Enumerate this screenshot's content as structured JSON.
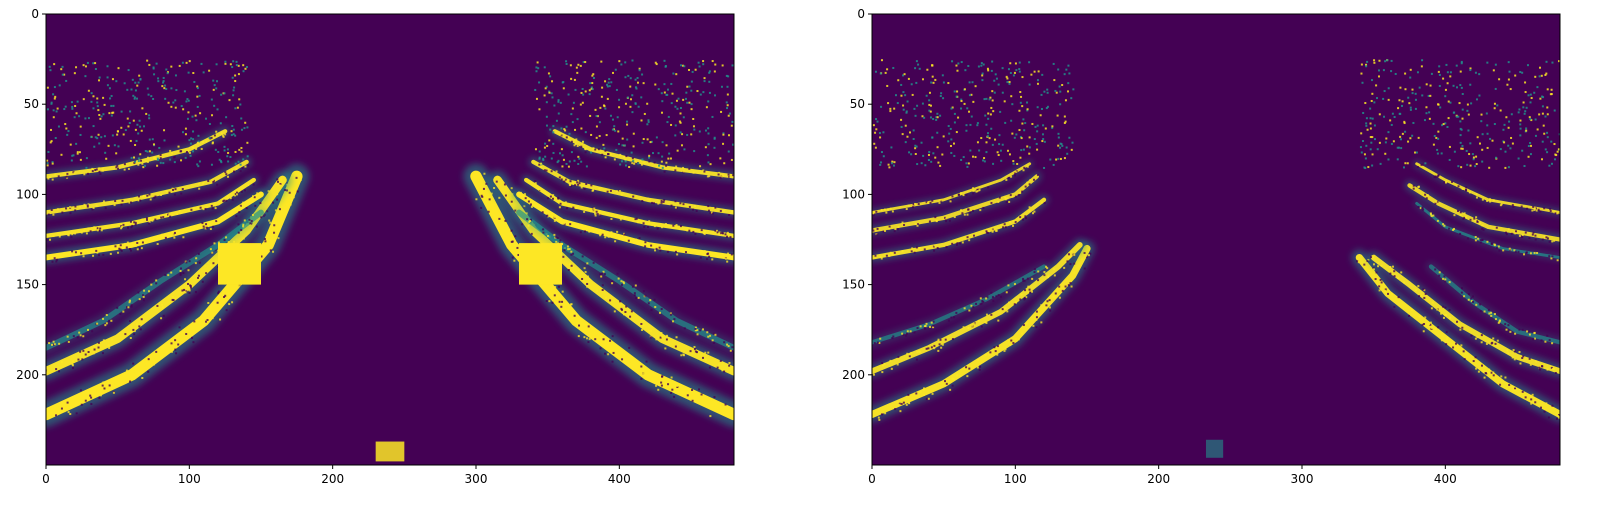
{
  "chart_data": [
    {
      "type": "heatmap",
      "title": "",
      "xlabel": "",
      "ylabel": "",
      "colormap": "viridis",
      "background_color": "#440154",
      "highlight_color": "#fde725",
      "mid_color": "#21918c",
      "xlim": [
        0,
        480
      ],
      "ylim": [
        250,
        0
      ],
      "x_ticks": [
        "0",
        "100",
        "200",
        "300",
        "400"
      ],
      "y_ticks": [
        "0",
        "50",
        "100",
        "150",
        "200"
      ],
      "features": [
        {
          "kind": "stripe",
          "x": [
            0,
            60,
            110,
            155,
            175
          ],
          "y": [
            222,
            200,
            170,
            128,
            90
          ],
          "intensity": 1.0,
          "width": 8
        },
        {
          "kind": "stripe",
          "x": [
            0,
            50,
            100,
            140,
            165
          ],
          "y": [
            198,
            180,
            150,
            120,
            92
          ],
          "intensity": 0.95,
          "width": 6
        },
        {
          "kind": "stripe",
          "x": [
            0,
            40,
            80,
            120,
            150
          ],
          "y": [
            185,
            170,
            148,
            128,
            110
          ],
          "intensity": 0.5,
          "width": 4
        },
        {
          "kind": "stripe",
          "x": [
            480,
            420,
            370,
            325,
            300
          ],
          "y": [
            222,
            200,
            170,
            128,
            90
          ],
          "intensity": 1.0,
          "width": 8
        },
        {
          "kind": "stripe",
          "x": [
            480,
            430,
            380,
            340,
            315
          ],
          "y": [
            198,
            180,
            150,
            120,
            92
          ],
          "intensity": 0.95,
          "width": 6
        },
        {
          "kind": "stripe",
          "x": [
            480,
            440,
            400,
            360,
            330
          ],
          "y": [
            185,
            170,
            148,
            128,
            110
          ],
          "intensity": 0.5,
          "width": 4
        },
        {
          "kind": "stripe",
          "x": [
            0,
            60,
            120,
            150
          ],
          "y": [
            135,
            128,
            115,
            100
          ],
          "intensity": 1.0,
          "width": 4
        },
        {
          "kind": "stripe",
          "x": [
            0,
            60,
            120,
            145
          ],
          "y": [
            123,
            116,
            105,
            92
          ],
          "intensity": 0.95,
          "width": 3
        },
        {
          "kind": "stripe",
          "x": [
            0,
            60,
            115,
            140
          ],
          "y": [
            110,
            103,
            93,
            82
          ],
          "intensity": 0.9,
          "width": 3
        },
        {
          "kind": "stripe",
          "x": [
            0,
            50,
            100,
            125
          ],
          "y": [
            90,
            85,
            75,
            65
          ],
          "intensity": 0.9,
          "width": 3
        },
        {
          "kind": "stripe",
          "x": [
            480,
            420,
            360,
            330
          ],
          "y": [
            135,
            128,
            115,
            100
          ],
          "intensity": 1.0,
          "width": 4
        },
        {
          "kind": "stripe",
          "x": [
            480,
            420,
            360,
            335
          ],
          "y": [
            123,
            116,
            105,
            92
          ],
          "intensity": 0.95,
          "width": 3
        },
        {
          "kind": "stripe",
          "x": [
            480,
            420,
            365,
            340
          ],
          "y": [
            110,
            103,
            93,
            82
          ],
          "intensity": 0.9,
          "width": 3
        },
        {
          "kind": "stripe",
          "x": [
            480,
            430,
            380,
            355
          ],
          "y": [
            90,
            85,
            75,
            65
          ],
          "intensity": 0.9,
          "width": 3
        },
        {
          "kind": "block",
          "x": [
            120,
            150
          ],
          "y": [
            127,
            150
          ],
          "intensity": 1.0
        },
        {
          "kind": "block",
          "x": [
            330,
            360
          ],
          "y": [
            127,
            150
          ],
          "intensity": 1.0
        },
        {
          "kind": "block",
          "x": [
            230,
            250
          ],
          "y": [
            237,
            248
          ],
          "intensity": 0.85
        }
      ]
    },
    {
      "type": "heatmap",
      "title": "",
      "xlabel": "",
      "ylabel": "",
      "colormap": "viridis",
      "background_color": "#440154",
      "highlight_color": "#fde725",
      "mid_color": "#21918c",
      "xlim": [
        0,
        480
      ],
      "ylim": [
        250,
        0
      ],
      "x_ticks": [
        "0",
        "100",
        "200",
        "300",
        "400"
      ],
      "y_ticks": [
        "0",
        "50",
        "100",
        "150",
        "200"
      ],
      "features": [
        {
          "kind": "stripe",
          "x": [
            0,
            50,
            100,
            140,
            150
          ],
          "y": [
            222,
            205,
            180,
            145,
            130
          ],
          "intensity": 0.95,
          "width": 5
        },
        {
          "kind": "stripe",
          "x": [
            0,
            40,
            90,
            130,
            145
          ],
          "y": [
            198,
            185,
            165,
            140,
            128
          ],
          "intensity": 0.9,
          "width": 4
        },
        {
          "kind": "stripe",
          "x": [
            0,
            40,
            80,
            120
          ],
          "y": [
            182,
            172,
            158,
            140
          ],
          "intensity": 0.5,
          "width": 3
        },
        {
          "kind": "stripe",
          "x": [
            480,
            440,
            400,
            360,
            340
          ],
          "y": [
            222,
            205,
            180,
            155,
            135
          ],
          "intensity": 0.95,
          "width": 5
        },
        {
          "kind": "stripe",
          "x": [
            480,
            450,
            410,
            375,
            350
          ],
          "y": [
            198,
            190,
            172,
            150,
            135
          ],
          "intensity": 0.9,
          "width": 4
        },
        {
          "kind": "stripe",
          "x": [
            480,
            450,
            420,
            390
          ],
          "y": [
            182,
            176,
            160,
            140
          ],
          "intensity": 0.5,
          "width": 3
        },
        {
          "kind": "stripe",
          "x": [
            0,
            50,
            100,
            120
          ],
          "y": [
            135,
            128,
            115,
            103
          ],
          "intensity": 0.9,
          "width": 3
        },
        {
          "kind": "stripe",
          "x": [
            0,
            50,
            100,
            115
          ],
          "y": [
            120,
            113,
            100,
            90
          ],
          "intensity": 0.85,
          "width": 3
        },
        {
          "kind": "stripe",
          "x": [
            0,
            50,
            90,
            110
          ],
          "y": [
            110,
            103,
            92,
            83
          ],
          "intensity": 0.85,
          "width": 2
        },
        {
          "kind": "stripe",
          "x": [
            480,
            440,
            400,
            380
          ],
          "y": [
            135,
            130,
            118,
            105
          ],
          "intensity": 0.6,
          "width": 2
        },
        {
          "kind": "stripe",
          "x": [
            480,
            430,
            395,
            375
          ],
          "y": [
            125,
            118,
            105,
            95
          ],
          "intensity": 0.85,
          "width": 3
        },
        {
          "kind": "stripe",
          "x": [
            480,
            430,
            400,
            380
          ],
          "y": [
            110,
            103,
            92,
            83
          ],
          "intensity": 0.85,
          "width": 2
        },
        {
          "kind": "block",
          "x": [
            233,
            245
          ],
          "y": [
            236,
            246
          ],
          "intensity": 0.6
        }
      ]
    }
  ]
}
